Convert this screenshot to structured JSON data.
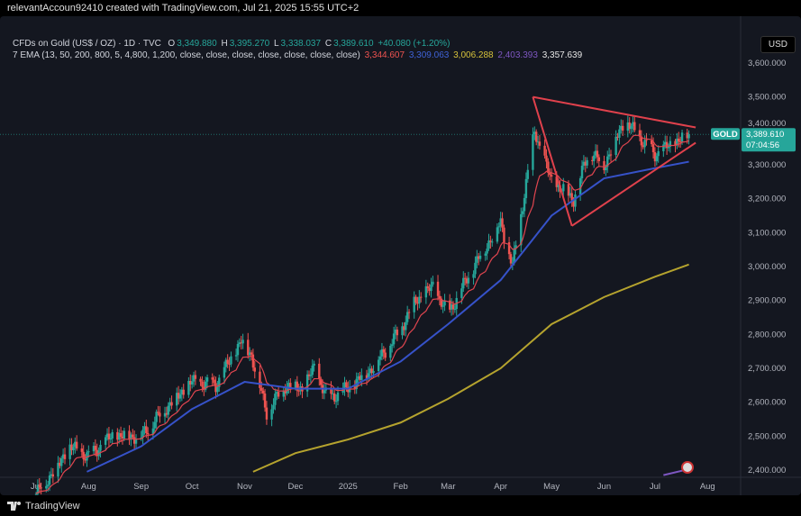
{
  "header": {
    "attribution": "relevantAccoun92410 created with TradingView.com, Jul 21, 2025 15:55 UTC+2"
  },
  "legend": {
    "symbol": "CFDs on Gold (US$ / OZ) · 1D · TVC",
    "o_label": "O",
    "o": "3,349.880",
    "h_label": "H",
    "h": "3,395.270",
    "l_label": "L",
    "l": "3,338.037",
    "c_label": "C",
    "c": "3,389.610",
    "change": "+40.080 (+1.20%)",
    "ema_label": "7 EMA (13, 50, 200, 800, 5, 4,800, 1,200, close, close, close, close, close, close, close)",
    "ema_values": [
      "3,344.607",
      "3,309.063",
      "3,006.288",
      "2,403.393",
      "3,357.639"
    ]
  },
  "currency": "USD",
  "price_tag": {
    "label": "GOLD",
    "price": "3,389.610",
    "countdown": "07:04:56"
  },
  "footer": {
    "brand": "TradingView"
  },
  "colors": {
    "up": "#26a69a",
    "down": "#ef5350",
    "ema13": "#e0454f",
    "ema50": "#3652c9",
    "ema200": "#b5a32e",
    "ema800": "#7e57c2",
    "triangle": "#e0414c"
  },
  "chart_data": {
    "type": "candlestick",
    "ylim": [
      2380,
      3660
    ],
    "y_ticks": [
      "2,400.000",
      "2,500.000",
      "2,600.000",
      "2,700.000",
      "2,800.000",
      "2,900.000",
      "3,000.000",
      "3,100.000",
      "3,200.000",
      "3,300.000",
      "3,400.000",
      "3,500.000",
      "3,600.000"
    ],
    "x_ticks": [
      {
        "label": "Jul",
        "day": 0
      },
      {
        "label": "Aug",
        "day": 31
      },
      {
        "label": "Sep",
        "day": 62
      },
      {
        "label": "Oct",
        "day": 92
      },
      {
        "label": "Nov",
        "day": 123
      },
      {
        "label": "Dec",
        "day": 153
      },
      {
        "label": "2025",
        "day": 184
      },
      {
        "label": "Feb",
        "day": 215
      },
      {
        "label": "Mar",
        "day": 243
      },
      {
        "label": "Apr",
        "day": 274
      },
      {
        "label": "May",
        "day": 304
      },
      {
        "label": "Jun",
        "day": 335
      },
      {
        "label": "Jul",
        "day": 365
      },
      {
        "label": "Aug",
        "day": 396
      }
    ],
    "close_path": [
      [
        0,
        2330
      ],
      [
        14,
        2420
      ],
      [
        19,
        2470
      ],
      [
        31,
        2440
      ],
      [
        45,
        2500
      ],
      [
        62,
        2500
      ],
      [
        76,
        2580
      ],
      [
        92,
        2660
      ],
      [
        106,
        2650
      ],
      [
        121,
        2780
      ],
      [
        127,
        2740
      ],
      [
        136,
        2570
      ],
      [
        147,
        2650
      ],
      [
        157,
        2640
      ],
      [
        164,
        2700
      ],
      [
        172,
        2610
      ],
      [
        184,
        2640
      ],
      [
        198,
        2700
      ],
      [
        213,
        2800
      ],
      [
        224,
        2900
      ],
      [
        234,
        2940
      ],
      [
        243,
        2860
      ],
      [
        257,
        2990
      ],
      [
        274,
        3130
      ],
      [
        281,
        3000
      ],
      [
        294,
        3400
      ],
      [
        304,
        3250
      ],
      [
        317,
        3200
      ],
      [
        326,
        3340
      ],
      [
        335,
        3300
      ],
      [
        347,
        3430
      ],
      [
        365,
        3330
      ],
      [
        385,
        3390
      ]
    ],
    "ema50": [
      [
        30,
        2395
      ],
      [
        62,
        2470
      ],
      [
        92,
        2580
      ],
      [
        123,
        2660
      ],
      [
        153,
        2640
      ],
      [
        184,
        2640
      ],
      [
        215,
        2720
      ],
      [
        243,
        2830
      ],
      [
        274,
        2960
      ],
      [
        304,
        3150
      ],
      [
        335,
        3260
      ],
      [
        365,
        3290
      ],
      [
        385,
        3309
      ]
    ],
    "ema200": [
      [
        128,
        2395
      ],
      [
        153,
        2450
      ],
      [
        184,
        2490
      ],
      [
        215,
        2540
      ],
      [
        243,
        2610
      ],
      [
        274,
        2700
      ],
      [
        304,
        2830
      ],
      [
        335,
        2910
      ],
      [
        365,
        2970
      ],
      [
        385,
        3006
      ]
    ],
    "ema800": [
      [
        370,
        2385
      ],
      [
        385,
        2403
      ]
    ],
    "triangle": [
      [
        [
          293,
          3500
        ],
        [
          389,
          3410
        ]
      ],
      [
        [
          316,
          3120
        ],
        [
          389,
          3365
        ]
      ],
      [
        [
          293,
          3500
        ],
        [
          316,
          3120
        ]
      ]
    ]
  }
}
